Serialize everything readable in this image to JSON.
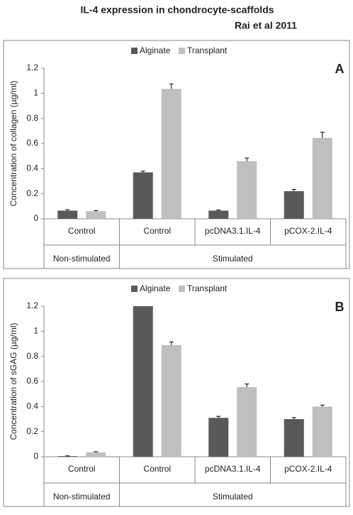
{
  "header": {
    "title": "IL-4 expression in chondrocyte-scaffolds",
    "subtitle": "Rai et al 2011"
  },
  "chart_data": [
    {
      "type": "bar",
      "panel_label": "A",
      "ylabel": "Concentration of collagen (µg/ml)",
      "groups": [
        {
          "name": "Non-stimulated",
          "categories": [
            "Control"
          ]
        },
        {
          "name": "Stimulated",
          "categories": [
            "Control",
            "pcDNA3.1.IL-4",
            "pCOX-2.IL-4"
          ]
        }
      ],
      "series": [
        {
          "name": "Alginate",
          "color": "#595959",
          "values": [
            0.065,
            0.37,
            0.065,
            0.22
          ],
          "errors": [
            0.008,
            0.01,
            0.005,
            0.015
          ]
        },
        {
          "name": "Transplant",
          "color": "#bfbfbf",
          "values": [
            0.06,
            1.035,
            0.46,
            0.645
          ],
          "errors": [
            0.005,
            0.04,
            0.025,
            0.045
          ]
        }
      ],
      "ylim": [
        0,
        1.2
      ],
      "yticks": [
        0,
        0.2,
        0.4,
        0.6,
        0.8,
        1,
        1.2
      ],
      "legend": "top"
    },
    {
      "type": "bar",
      "panel_label": "B",
      "ylabel": "Concentration of sGAG (µg/ml)",
      "groups": [
        {
          "name": "Non-stimulated",
          "categories": [
            "Control"
          ]
        },
        {
          "name": "Stimulated",
          "categories": [
            "Control",
            "pcDNA3.1.IL-4",
            "pCOX-2.IL-4"
          ]
        }
      ],
      "series": [
        {
          "name": "Alginate",
          "color": "#595959",
          "values": [
            0.005,
            1.2,
            0.31,
            0.3
          ],
          "errors": [
            0.002,
            null,
            0.012,
            0.012
          ]
        },
        {
          "name": "Transplant",
          "color": "#bfbfbf",
          "values": [
            0.035,
            0.89,
            0.555,
            0.4
          ],
          "errors": [
            0.005,
            0.025,
            0.025,
            0.012
          ]
        }
      ],
      "ylim": [
        0,
        1.2
      ],
      "yticks": [
        0,
        0.2,
        0.4,
        0.6,
        0.8,
        1,
        1.2
      ],
      "legend": "top"
    }
  ]
}
